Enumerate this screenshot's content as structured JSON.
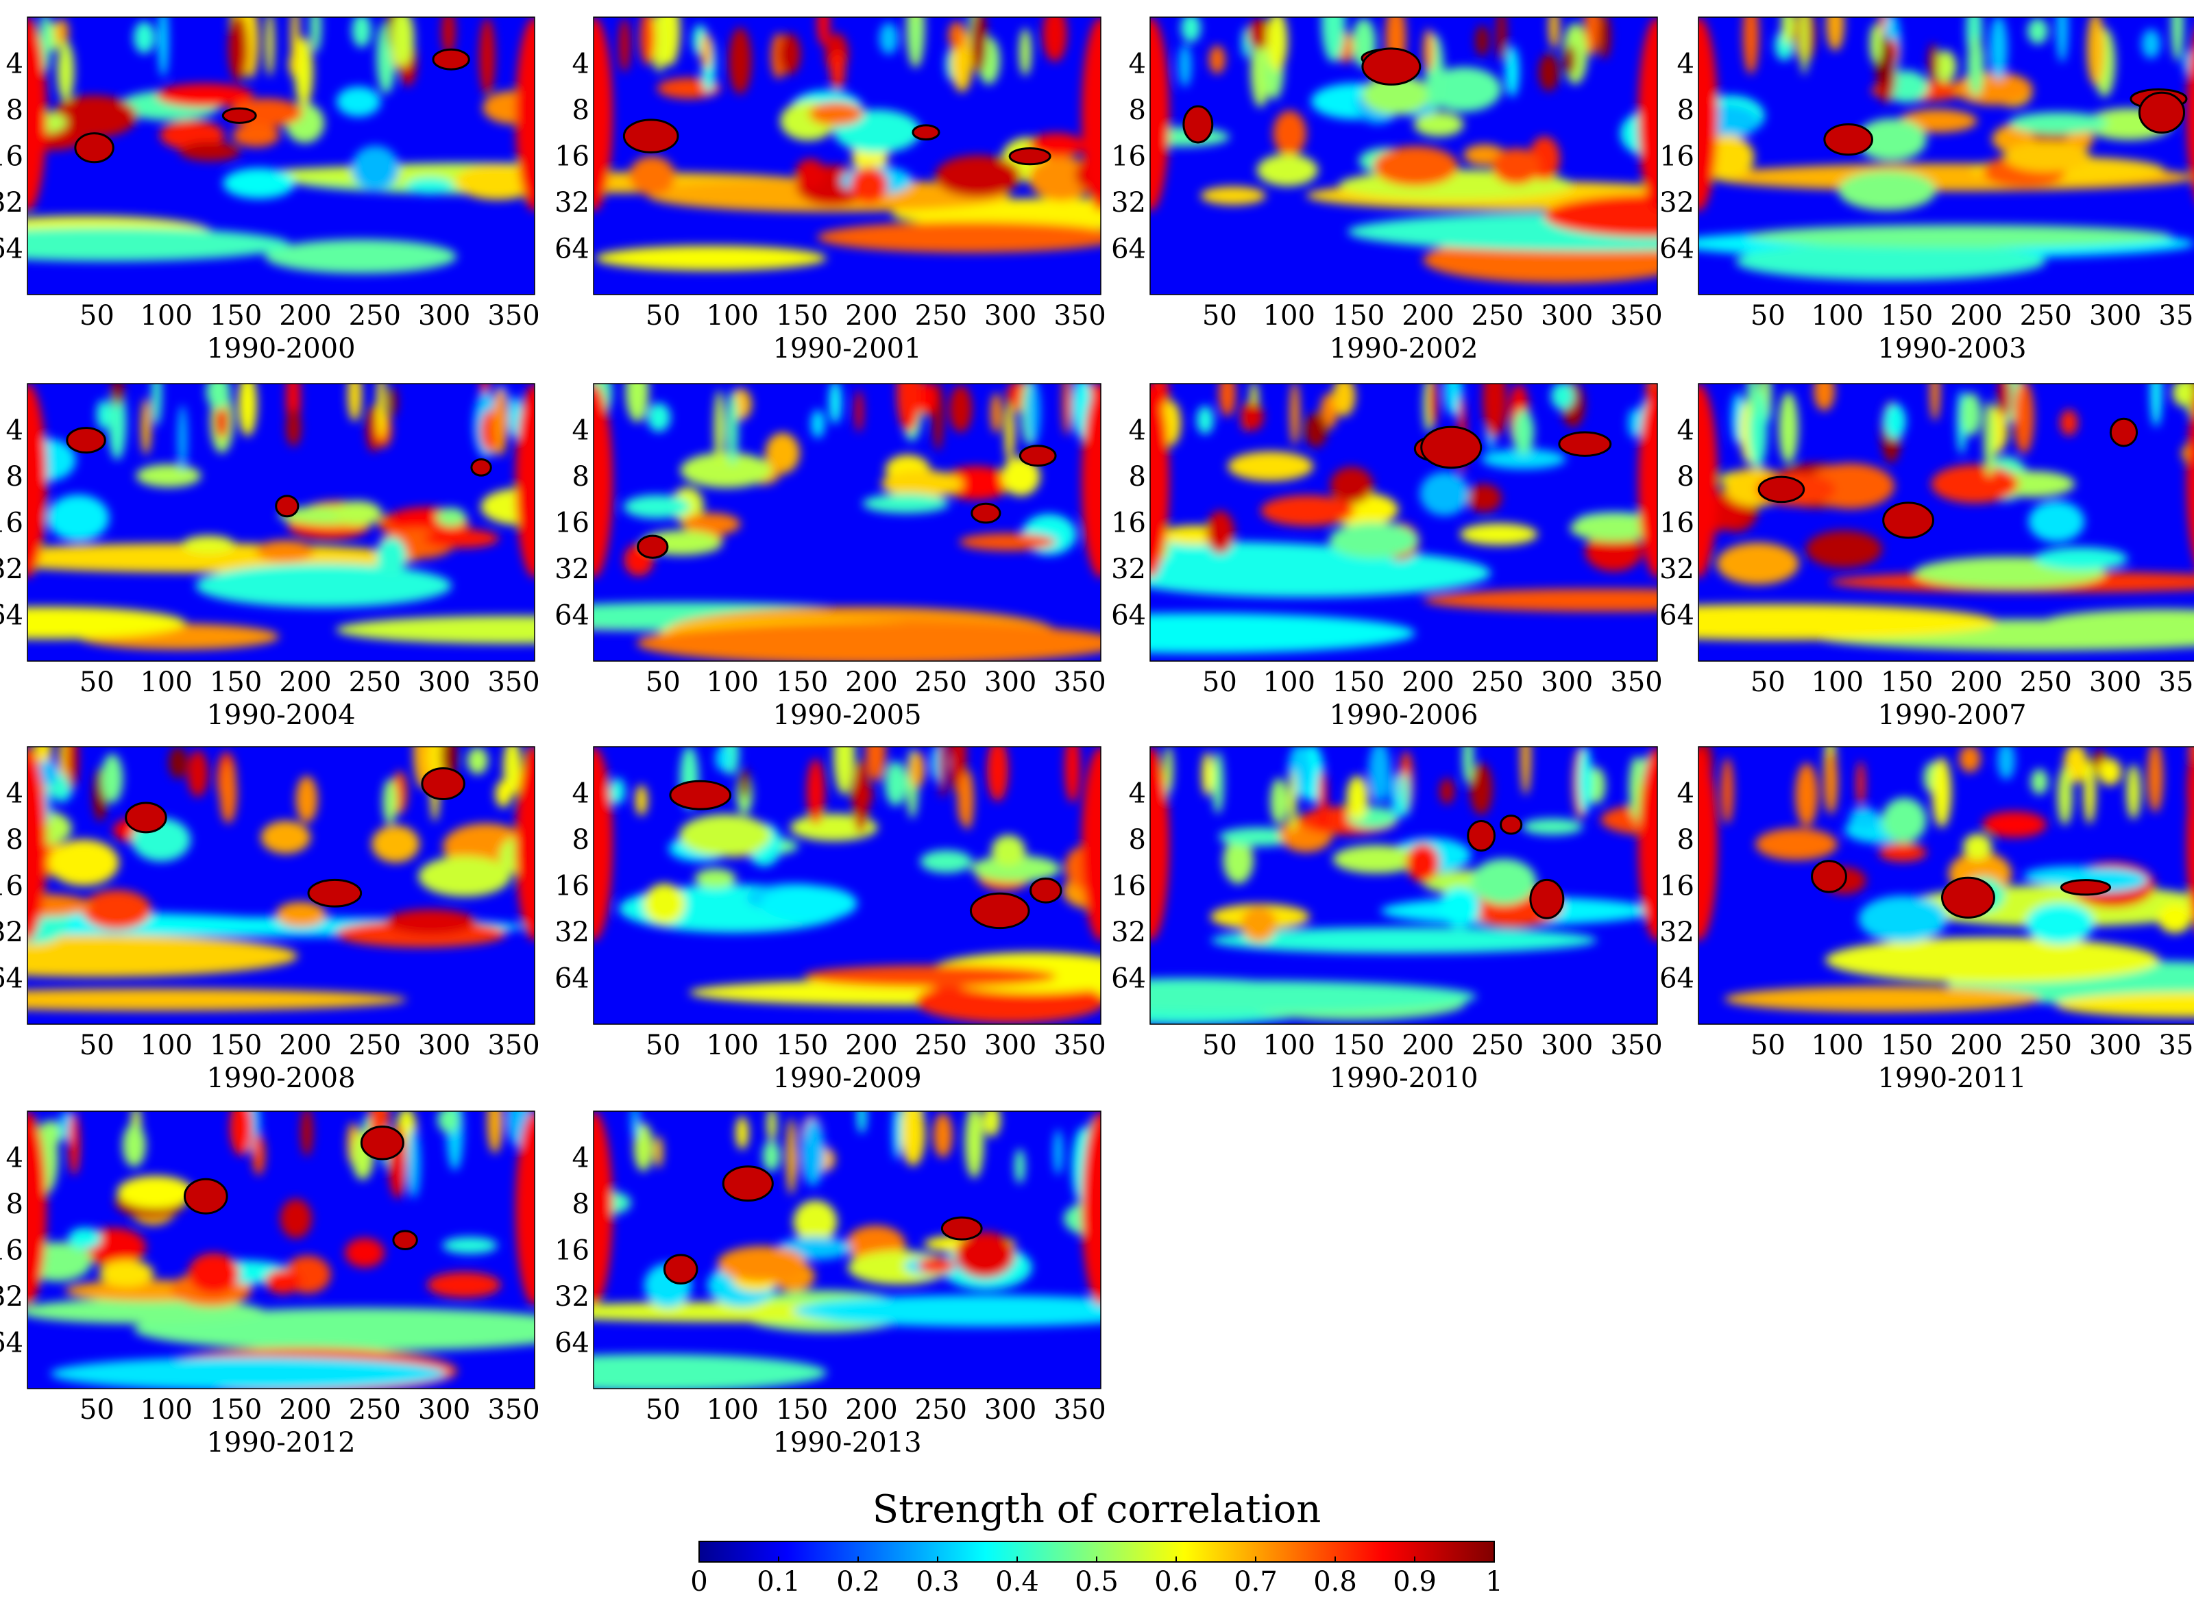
{
  "chart_data": {
    "type": "heatmap",
    "description_kind": "wavelet coherence panels",
    "y_ticks": [
      "4",
      "8",
      "16",
      "32",
      "64"
    ],
    "y_tick_values": [
      4,
      8,
      16,
      32,
      64
    ],
    "x_ticks": [
      "50",
      "100",
      "150",
      "200",
      "250",
      "300",
      "350"
    ],
    "x_tick_values": [
      50,
      100,
      150,
      200,
      250,
      300,
      350
    ],
    "xlim": [
      0,
      365
    ],
    "ylim": [
      2,
      128
    ],
    "panels": [
      {
        "title": "1990-2000"
      },
      {
        "title": "1990-2001"
      },
      {
        "title": "1990-2002"
      },
      {
        "title": "1990-2003"
      },
      {
        "title": "1990-2004"
      },
      {
        "title": "1990-2005"
      },
      {
        "title": "1990-2006"
      },
      {
        "title": "1990-2007"
      },
      {
        "title": "1990-2008"
      },
      {
        "title": "1990-2009"
      },
      {
        "title": "1990-2010"
      },
      {
        "title": "1990-2011"
      },
      {
        "title": "1990-2012"
      },
      {
        "title": "1990-2013"
      }
    ],
    "colorbar": {
      "title": "Strength of correlation",
      "ticks": [
        "0",
        "0.1",
        "0.2",
        "0.3",
        "0.4",
        "0.5",
        "0.6",
        "0.7",
        "0.8",
        "0.9",
        "1"
      ],
      "range": [
        0,
        1
      ],
      "colormap": "jet"
    }
  }
}
